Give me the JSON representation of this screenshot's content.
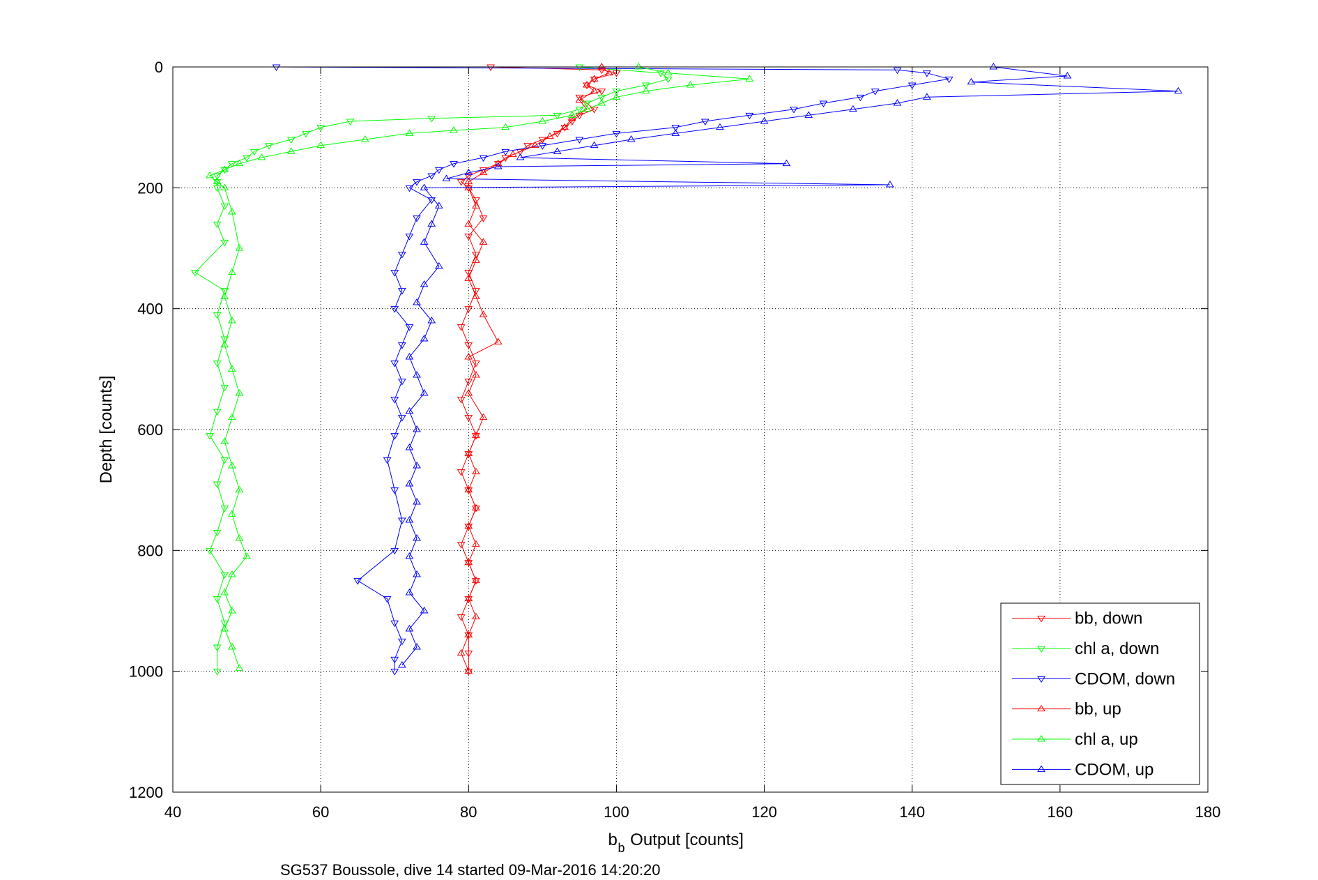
{
  "chart_data": {
    "type": "scatter",
    "xlabel_main": "b",
    "xlabel_sub": "b",
    "xlabel_rest": " Output [counts]",
    "ylabel": "Depth [counts]",
    "caption": "SG537 Boussole, dive 14 started 09-Mar-2016 14:20:20",
    "xlim": [
      40,
      180
    ],
    "ylim": [
      0,
      1200
    ],
    "y_reversed": true,
    "grid": true,
    "legend_position": "bottom-right",
    "x_ticks": [
      "40",
      "60",
      "80",
      "100",
      "120",
      "140",
      "160",
      "180"
    ],
    "y_ticks": [
      "0",
      "200",
      "400",
      "600",
      "800",
      "1000",
      "1200"
    ],
    "colors": {
      "red": "#ff0000",
      "green": "#00ff00",
      "blue": "#0000ff"
    },
    "series": [
      {
        "name": "bb, down",
        "color": "#ff0000",
        "marker": "triangle-down",
        "points": [
          [
            83,
            0
          ],
          [
            98,
            5
          ],
          [
            100,
            10
          ],
          [
            97,
            20
          ],
          [
            96,
            30
          ],
          [
            98,
            40
          ],
          [
            95,
            50
          ],
          [
            96,
            60
          ],
          [
            97,
            70
          ],
          [
            95,
            80
          ],
          [
            94,
            90
          ],
          [
            93,
            100
          ],
          [
            92,
            110
          ],
          [
            90,
            120
          ],
          [
            88,
            130
          ],
          [
            87,
            140
          ],
          [
            85,
            150
          ],
          [
            84,
            160
          ],
          [
            82,
            170
          ],
          [
            80,
            180
          ],
          [
            79,
            190
          ],
          [
            80,
            200
          ],
          [
            81,
            220
          ],
          [
            82,
            250
          ],
          [
            80,
            280
          ],
          [
            81,
            310
          ],
          [
            80,
            340
          ],
          [
            81,
            370
          ],
          [
            80,
            400
          ],
          [
            79,
            430
          ],
          [
            80,
            460
          ],
          [
            81,
            490
          ],
          [
            80,
            520
          ],
          [
            79,
            550
          ],
          [
            80,
            580
          ],
          [
            81,
            610
          ],
          [
            80,
            640
          ],
          [
            79,
            670
          ],
          [
            80,
            700
          ],
          [
            81,
            730
          ],
          [
            80,
            760
          ],
          [
            79,
            790
          ],
          [
            80,
            820
          ],
          [
            81,
            850
          ],
          [
            80,
            880
          ],
          [
            79,
            910
          ],
          [
            80,
            940
          ],
          [
            80,
            970
          ],
          [
            80,
            1000
          ]
        ]
      },
      {
        "name": "chl a, down",
        "color": "#00ff00",
        "marker": "triangle-down",
        "points": [
          [
            95,
            0
          ],
          [
            106,
            10
          ],
          [
            107,
            20
          ],
          [
            104,
            30
          ],
          [
            100,
            40
          ],
          [
            98,
            50
          ],
          [
            96,
            60
          ],
          [
            95,
            70
          ],
          [
            92,
            80
          ],
          [
            75,
            85
          ],
          [
            64,
            90
          ],
          [
            60,
            100
          ],
          [
            58,
            110
          ],
          [
            56,
            120
          ],
          [
            53,
            130
          ],
          [
            51,
            140
          ],
          [
            50,
            150
          ],
          [
            48,
            160
          ],
          [
            47,
            170
          ],
          [
            46,
            180
          ],
          [
            46,
            190
          ],
          [
            46,
            200
          ],
          [
            47,
            230
          ],
          [
            46,
            260
          ],
          [
            47,
            290
          ],
          [
            43,
            340
          ],
          [
            47,
            370
          ],
          [
            46,
            410
          ],
          [
            47,
            450
          ],
          [
            46,
            490
          ],
          [
            47,
            530
          ],
          [
            46,
            570
          ],
          [
            45,
            610
          ],
          [
            47,
            650
          ],
          [
            46,
            690
          ],
          [
            47,
            730
          ],
          [
            46,
            770
          ],
          [
            45,
            800
          ],
          [
            47,
            840
          ],
          [
            46,
            880
          ],
          [
            47,
            920
          ],
          [
            46,
            960
          ],
          [
            46,
            1000
          ]
        ]
      },
      {
        "name": "CDOM, down",
        "color": "#0000ff",
        "marker": "triangle-down",
        "points": [
          [
            54,
            0
          ],
          [
            138,
            5
          ],
          [
            142,
            10
          ],
          [
            145,
            20
          ],
          [
            140,
            30
          ],
          [
            135,
            40
          ],
          [
            133,
            50
          ],
          [
            128,
            60
          ],
          [
            124,
            70
          ],
          [
            118,
            80
          ],
          [
            112,
            90
          ],
          [
            108,
            100
          ],
          [
            100,
            110
          ],
          [
            95,
            120
          ],
          [
            90,
            130
          ],
          [
            85,
            140
          ],
          [
            82,
            150
          ],
          [
            78,
            160
          ],
          [
            76,
            170
          ],
          [
            75,
            180
          ],
          [
            73,
            190
          ],
          [
            72,
            200
          ],
          [
            75,
            220
          ],
          [
            73,
            250
          ],
          [
            72,
            280
          ],
          [
            71,
            310
          ],
          [
            70,
            340
          ],
          [
            71,
            370
          ],
          [
            70,
            400
          ],
          [
            72,
            430
          ],
          [
            71,
            460
          ],
          [
            70,
            490
          ],
          [
            71,
            520
          ],
          [
            70,
            550
          ],
          [
            71,
            580
          ],
          [
            70,
            610
          ],
          [
            69,
            650
          ],
          [
            70,
            700
          ],
          [
            71,
            750
          ],
          [
            70,
            800
          ],
          [
            65,
            850
          ],
          [
            69,
            880
          ],
          [
            70,
            920
          ],
          [
            71,
            950
          ],
          [
            70,
            980
          ],
          [
            70,
            1000
          ]
        ]
      },
      {
        "name": "bb, up",
        "color": "#ff0000",
        "marker": "triangle-up",
        "points": [
          [
            98,
            0
          ],
          [
            99,
            10
          ],
          [
            97,
            20
          ],
          [
            96,
            30
          ],
          [
            97,
            40
          ],
          [
            95,
            55
          ],
          [
            96,
            70
          ],
          [
            94,
            85
          ],
          [
            93,
            100
          ],
          [
            91,
            115
          ],
          [
            89,
            130
          ],
          [
            86,
            145
          ],
          [
            84,
            160
          ],
          [
            82,
            175
          ],
          [
            80,
            190
          ],
          [
            80,
            200
          ],
          [
            81,
            230
          ],
          [
            80,
            260
          ],
          [
            82,
            290
          ],
          [
            81,
            320
          ],
          [
            80,
            350
          ],
          [
            81,
            380
          ],
          [
            82,
            410
          ],
          [
            84,
            455
          ],
          [
            80,
            480
          ],
          [
            81,
            510
          ],
          [
            80,
            540
          ],
          [
            82,
            580
          ],
          [
            81,
            610
          ],
          [
            80,
            640
          ],
          [
            81,
            670
          ],
          [
            80,
            700
          ],
          [
            81,
            730
          ],
          [
            80,
            760
          ],
          [
            81,
            790
          ],
          [
            80,
            820
          ],
          [
            81,
            850
          ],
          [
            80,
            880
          ],
          [
            81,
            910
          ],
          [
            80,
            940
          ],
          [
            79,
            970
          ],
          [
            80,
            1000
          ]
        ]
      },
      {
        "name": "chl a, up",
        "color": "#00ff00",
        "marker": "triangle-up",
        "points": [
          [
            103,
            0
          ],
          [
            107,
            10
          ],
          [
            118,
            20
          ],
          [
            110,
            30
          ],
          [
            104,
            40
          ],
          [
            100,
            50
          ],
          [
            98,
            60
          ],
          [
            96,
            70
          ],
          [
            94,
            80
          ],
          [
            90,
            90
          ],
          [
            85,
            100
          ],
          [
            78,
            105
          ],
          [
            72,
            110
          ],
          [
            66,
            120
          ],
          [
            60,
            130
          ],
          [
            56,
            140
          ],
          [
            52,
            150
          ],
          [
            49,
            160
          ],
          [
            47,
            170
          ],
          [
            45,
            180
          ],
          [
            46,
            190
          ],
          [
            47,
            200
          ],
          [
            48,
            240
          ],
          [
            49,
            300
          ],
          [
            48,
            340
          ],
          [
            47,
            380
          ],
          [
            48,
            420
          ],
          [
            47,
            460
          ],
          [
            48,
            500
          ],
          [
            49,
            540
          ],
          [
            48,
            580
          ],
          [
            47,
            620
          ],
          [
            48,
            660
          ],
          [
            49,
            700
          ],
          [
            48,
            740
          ],
          [
            49,
            780
          ],
          [
            50,
            810
          ],
          [
            48,
            840
          ],
          [
            47,
            870
          ],
          [
            48,
            900
          ],
          [
            47,
            930
          ],
          [
            48,
            960
          ],
          [
            49,
            995
          ]
        ]
      },
      {
        "name": "CDOM, up",
        "color": "#0000ff",
        "marker": "triangle-up",
        "points": [
          [
            151,
            0
          ],
          [
            161,
            15
          ],
          [
            148,
            25
          ],
          [
            176,
            40
          ],
          [
            142,
            50
          ],
          [
            138,
            60
          ],
          [
            132,
            70
          ],
          [
            126,
            80
          ],
          [
            120,
            90
          ],
          [
            114,
            100
          ],
          [
            108,
            110
          ],
          [
            102,
            120
          ],
          [
            97,
            130
          ],
          [
            92,
            140
          ],
          [
            87,
            150
          ],
          [
            123,
            160
          ],
          [
            84,
            165
          ],
          [
            80,
            175
          ],
          [
            77,
            185
          ],
          [
            137,
            195
          ],
          [
            74,
            200
          ],
          [
            76,
            230
          ],
          [
            75,
            260
          ],
          [
            74,
            290
          ],
          [
            76,
            330
          ],
          [
            74,
            360
          ],
          [
            73,
            390
          ],
          [
            75,
            420
          ],
          [
            74,
            450
          ],
          [
            72,
            480
          ],
          [
            73,
            510
          ],
          [
            74,
            540
          ],
          [
            72,
            570
          ],
          [
            73,
            600
          ],
          [
            72,
            630
          ],
          [
            73,
            660
          ],
          [
            72,
            690
          ],
          [
            73,
            720
          ],
          [
            72,
            750
          ],
          [
            73,
            780
          ],
          [
            72,
            810
          ],
          [
            73,
            840
          ],
          [
            72,
            870
          ],
          [
            74,
            900
          ],
          [
            72,
            930
          ],
          [
            73,
            960
          ],
          [
            71,
            990
          ]
        ]
      }
    ]
  }
}
